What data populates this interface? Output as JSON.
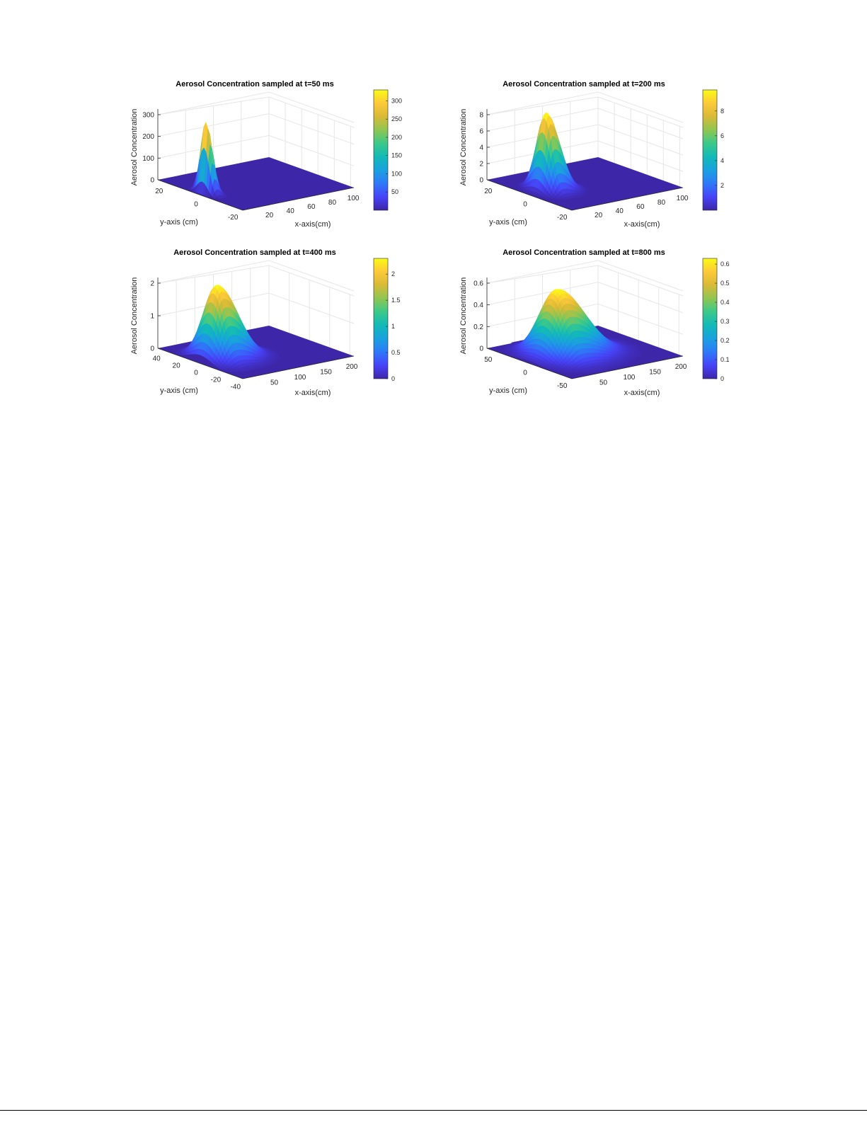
{
  "chart_data": [
    {
      "type": "surface",
      "title": "Aerosol Concentration sampled at t=50 ms",
      "xlabel": "x-axis(cm)",
      "ylabel": "y-axis (cm)",
      "zlabel": "Aerosol Concentration",
      "xticks": [
        "20",
        "40",
        "60",
        "80",
        "100"
      ],
      "yticks": [
        "20",
        "0",
        "-20"
      ],
      "zticks": [
        "0",
        "100",
        "200",
        "300"
      ],
      "xlim": [
        0,
        100
      ],
      "ylim": [
        -30,
        30
      ],
      "zlim": [
        0,
        330
      ],
      "peak": {
        "x": 5,
        "y": 0,
        "z": 330
      },
      "colorbar": {
        "min": 0,
        "max": 330,
        "ticks": [
          "50",
          "100",
          "150",
          "200",
          "250",
          "300"
        ]
      }
    },
    {
      "type": "surface",
      "title": "Aerosol Concentration sampled at t=200 ms",
      "xlabel": "x-axis(cm)",
      "ylabel": "y-axis (cm)",
      "zlabel": "Aerosol Concentration",
      "xticks": [
        "20",
        "40",
        "60",
        "80",
        "100"
      ],
      "yticks": [
        "20",
        "0",
        "-20"
      ],
      "zticks": [
        "0",
        "2",
        "4",
        "6",
        "8"
      ],
      "xlim": [
        0,
        100
      ],
      "ylim": [
        -30,
        30
      ],
      "zlim": [
        0,
        9.7
      ],
      "peak": {
        "x": 15,
        "y": 0,
        "z": 9.7
      },
      "colorbar": {
        "min": 0,
        "max": 9.7,
        "ticks": [
          "2",
          "4",
          "6",
          "8"
        ]
      }
    },
    {
      "type": "surface",
      "title": "Aerosol Concentration sampled at t=400 ms",
      "xlabel": "x-axis(cm)",
      "ylabel": "y-axis (cm)",
      "zlabel": "Aerosol Concentration",
      "xticks": [
        "50",
        "100",
        "150",
        "200"
      ],
      "yticks": [
        "40",
        "20",
        "0",
        "-20",
        "-40"
      ],
      "zticks": [
        "0",
        "1",
        "2"
      ],
      "xlim": [
        0,
        200
      ],
      "ylim": [
        -45,
        45
      ],
      "zlim": [
        0,
        2.3
      ],
      "peak": {
        "x": 30,
        "y": 0,
        "z": 2.3
      },
      "colorbar": {
        "min": 0,
        "max": 2.3,
        "ticks": [
          "0",
          "0.5",
          "1",
          "1.5",
          "2"
        ]
      }
    },
    {
      "type": "surface",
      "title": "Aerosol Concentration sampled at t=800 ms",
      "xlabel": "x-axis(cm)",
      "ylabel": "y-axis (cm)",
      "zlabel": "Aerosol Concentration",
      "xticks": [
        "50",
        "100",
        "150",
        "200"
      ],
      "yticks": [
        "50",
        "0",
        "-50"
      ],
      "zticks": [
        "0",
        "0.2",
        "0.4",
        "0.6"
      ],
      "xlim": [
        0,
        200
      ],
      "ylim": [
        -60,
        60
      ],
      "zlim": [
        0,
        0.63
      ],
      "peak": {
        "x": 50,
        "y": 0,
        "z": 0.63
      },
      "colorbar": {
        "min": 0,
        "max": 0.63,
        "ticks": [
          "0",
          "0.1",
          "0.2",
          "0.3",
          "0.4",
          "0.5",
          "0.6"
        ]
      }
    }
  ],
  "colormap": [
    "#3e26a8",
    "#4743f8",
    "#2e79f8",
    "#1aa1df",
    "#12bab8",
    "#3bc98a",
    "#8fc652",
    "#d8ba37",
    "#fcc938",
    "#f9fb15"
  ],
  "colors": {
    "floor": "#3e26a8",
    "grid": "#e6e6e6",
    "axis": "#262626"
  }
}
